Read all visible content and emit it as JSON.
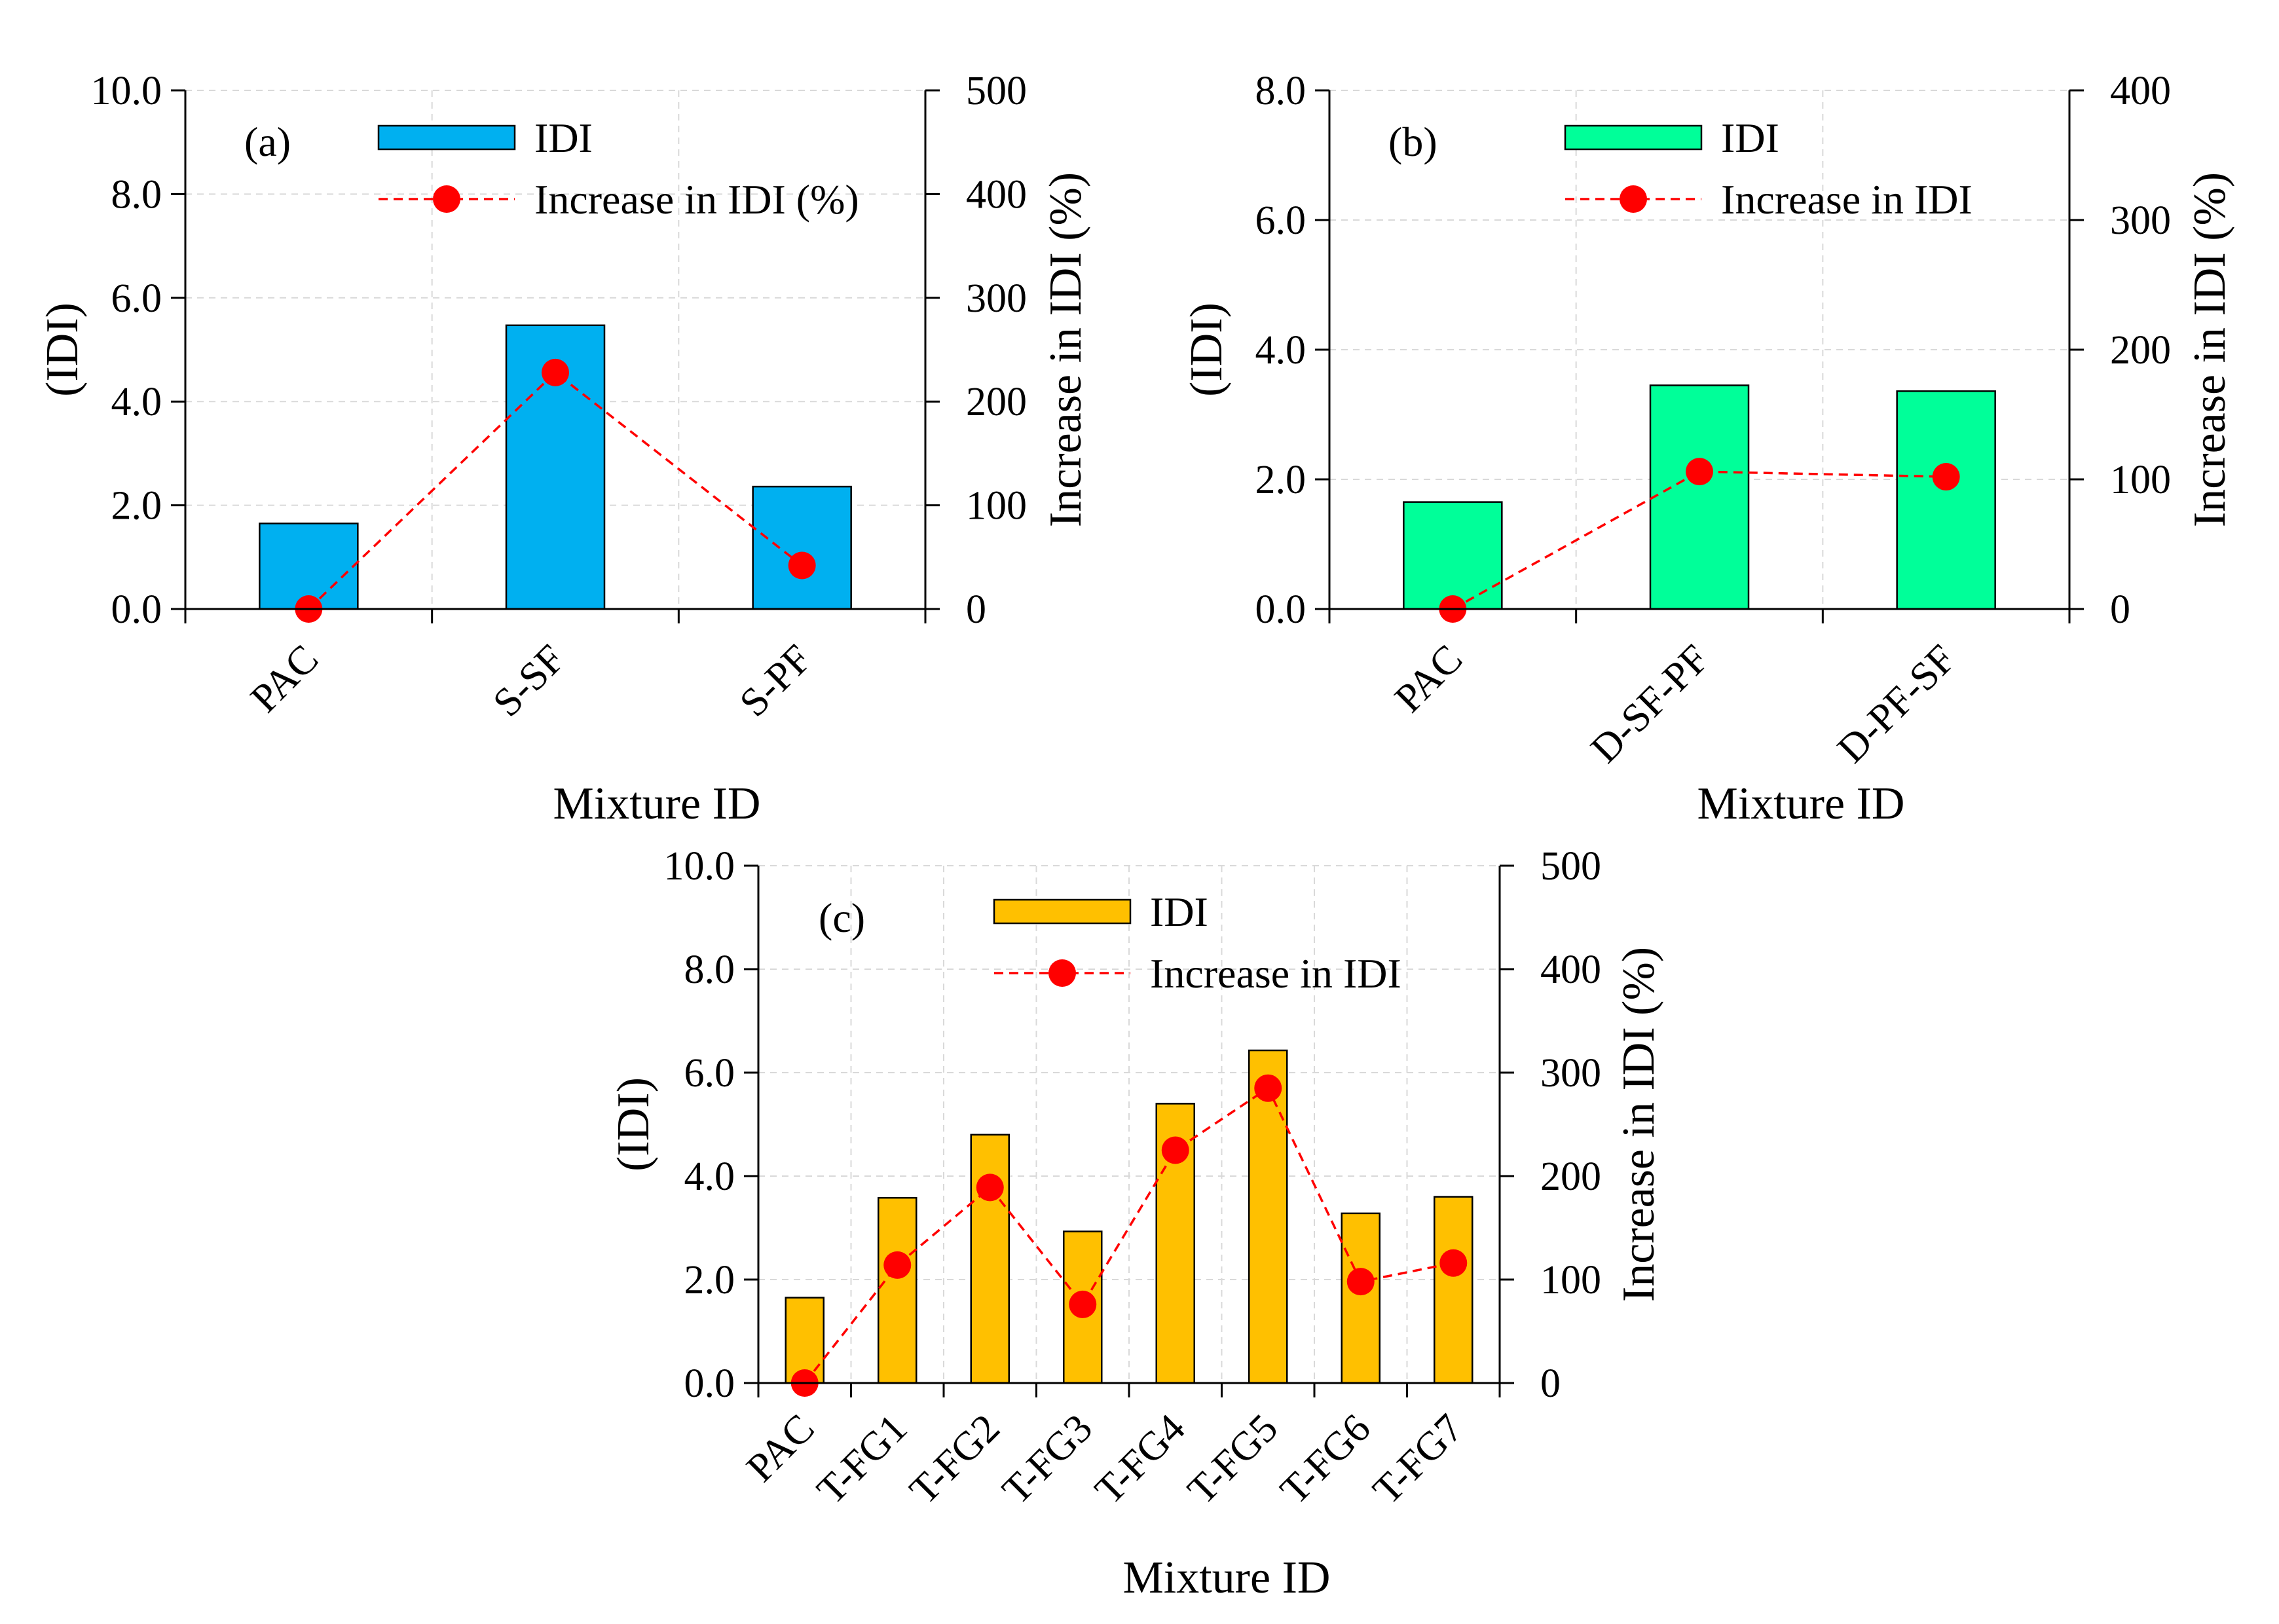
{
  "chart_data": [
    {
      "id": "a",
      "type": "bar",
      "panel_label": "(a)",
      "categories": [
        "PAC",
        "S-SF",
        "S-PF"
      ],
      "series": [
        {
          "name": "IDI",
          "kind": "bar",
          "axis": "left",
          "values": [
            1.65,
            5.47,
            2.36
          ]
        },
        {
          "name": "Increase in IDI (%)",
          "kind": "line",
          "axis": "right",
          "values": [
            0,
            228,
            42
          ]
        }
      ],
      "xlabel": "Mixture ID",
      "ylabel": "(IDI)",
      "y2label": "Increase in IDI (%)",
      "ylim": [
        0,
        10
      ],
      "y2lim": [
        0,
        500
      ],
      "yticks": [
        "0.0",
        "2.0",
        "4.0",
        "6.0",
        "8.0",
        "10.0"
      ],
      "y2ticks": [
        "0",
        "100",
        "200",
        "300",
        "400",
        "500"
      ],
      "bar_color": "#00b0f0",
      "line_color": "#ff0000",
      "legend_position": "top-center",
      "grid": true
    },
    {
      "id": "b",
      "type": "bar",
      "panel_label": "(b)",
      "categories": [
        "PAC",
        "D-SF-PF",
        "D-PF-SF"
      ],
      "series": [
        {
          "name": "IDI",
          "kind": "bar",
          "axis": "left",
          "values": [
            1.65,
            3.45,
            3.36
          ]
        },
        {
          "name": "Increase in IDI",
          "kind": "line",
          "axis": "right",
          "values": [
            0,
            106,
            102
          ]
        }
      ],
      "xlabel": "Mixture ID",
      "ylabel": "(IDI)",
      "y2label": "Increase in IDI (%)",
      "ylim": [
        0,
        8
      ],
      "y2lim": [
        0,
        400
      ],
      "yticks": [
        "0.0",
        "2.0",
        "4.0",
        "6.0",
        "8.0"
      ],
      "y2ticks": [
        "0",
        "100",
        "200",
        "300",
        "400"
      ],
      "bar_color": "#00ff99",
      "line_color": "#ff0000",
      "legend_position": "top-center",
      "grid": true
    },
    {
      "id": "c",
      "type": "bar",
      "panel_label": "(c)",
      "categories": [
        "PAC",
        "T-FG1",
        "T-FG2",
        "T-FG3",
        "T-FG4",
        "T-FG5",
        "T-FG6",
        "T-FG7"
      ],
      "series": [
        {
          "name": "IDI",
          "kind": "bar",
          "axis": "left",
          "values": [
            1.65,
            3.58,
            4.8,
            2.93,
            5.4,
            6.43,
            3.28,
            3.6
          ]
        },
        {
          "name": "Increase in IDI",
          "kind": "line",
          "axis": "right",
          "values": [
            0,
            114,
            189,
            76,
            225,
            285,
            98,
            116
          ]
        }
      ],
      "xlabel": "Mixture ID",
      "ylabel": "(IDI)",
      "y2label": "Increase in IDI (%)",
      "ylim": [
        0,
        10
      ],
      "y2lim": [
        0,
        500
      ],
      "yticks": [
        "0.0",
        "2.0",
        "4.0",
        "6.0",
        "8.0",
        "10.0"
      ],
      "y2ticks": [
        "0",
        "100",
        "200",
        "300",
        "400",
        "500"
      ],
      "bar_color": "#ffc000",
      "line_color": "#ff0000",
      "legend_position": "top-center",
      "grid": true
    }
  ]
}
